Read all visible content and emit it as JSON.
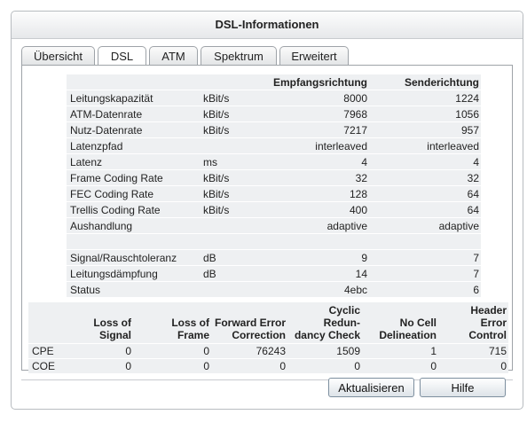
{
  "window": {
    "title": "DSL-Informationen"
  },
  "tabs": [
    {
      "label": "Übersicht"
    },
    {
      "label": "DSL"
    },
    {
      "label": "ATM"
    },
    {
      "label": "Spektrum"
    },
    {
      "label": "Erweitert"
    }
  ],
  "dsl": {
    "headers": {
      "downstream": "Empfangsrichtung",
      "upstream": "Senderichtung"
    },
    "rows": [
      {
        "label": "Leitungskapazität",
        "unit": "kBit/s",
        "down": "8000",
        "up": "1224"
      },
      {
        "label": "ATM-Datenrate",
        "unit": "kBit/s",
        "down": "7968",
        "up": "1056"
      },
      {
        "label": "Nutz-Datenrate",
        "unit": "kBit/s",
        "down": "7217",
        "up": "957"
      },
      {
        "label": "Latenzpfad",
        "unit": "",
        "down": "interleaved",
        "up": "interleaved"
      },
      {
        "label": "Latenz",
        "unit": "ms",
        "down": "4",
        "up": "4"
      },
      {
        "label": "Frame Coding Rate",
        "unit": "kBit/s",
        "down": "32",
        "up": "32"
      },
      {
        "label": "FEC Coding Rate",
        "unit": "kBit/s",
        "down": "128",
        "up": "64"
      },
      {
        "label": "Trellis Coding Rate",
        "unit": "kBit/s",
        "down": "400",
        "up": "64"
      },
      {
        "label": "Aushandlung",
        "unit": "",
        "down": "adaptive",
        "up": "adaptive"
      },
      {
        "label": "",
        "unit": "",
        "down": "",
        "up": ""
      },
      {
        "label": "Signal/Rauschtoleranz",
        "unit": "dB",
        "down": "9",
        "up": "7"
      },
      {
        "label": "Leitungsdämpfung",
        "unit": "dB",
        "down": "14",
        "up": "7"
      },
      {
        "label": "Status",
        "unit": "",
        "down": "4ebc",
        "up": "6"
      }
    ]
  },
  "errors": {
    "headers": [
      {
        "line1": "Loss of",
        "line2": "Signal"
      },
      {
        "line1": "Loss of",
        "line2": "Frame"
      },
      {
        "line1": "Forward Error",
        "line2": "Correction"
      },
      {
        "line1": "Cyclic Redun-",
        "line2": "dancy Check"
      },
      {
        "line1": "No Cell",
        "line2": "Delineation"
      },
      {
        "line1": "Header Error",
        "line2": "Control"
      }
    ],
    "rows": [
      {
        "label": "CPE",
        "values": [
          "0",
          "0",
          "76243",
          "1509",
          "1",
          "715"
        ]
      },
      {
        "label": "COE",
        "values": [
          "0",
          "0",
          "0",
          "0",
          "0",
          "0"
        ]
      }
    ]
  },
  "buttons": {
    "refresh": "Aktualisieren",
    "help": "Hilfe"
  }
}
